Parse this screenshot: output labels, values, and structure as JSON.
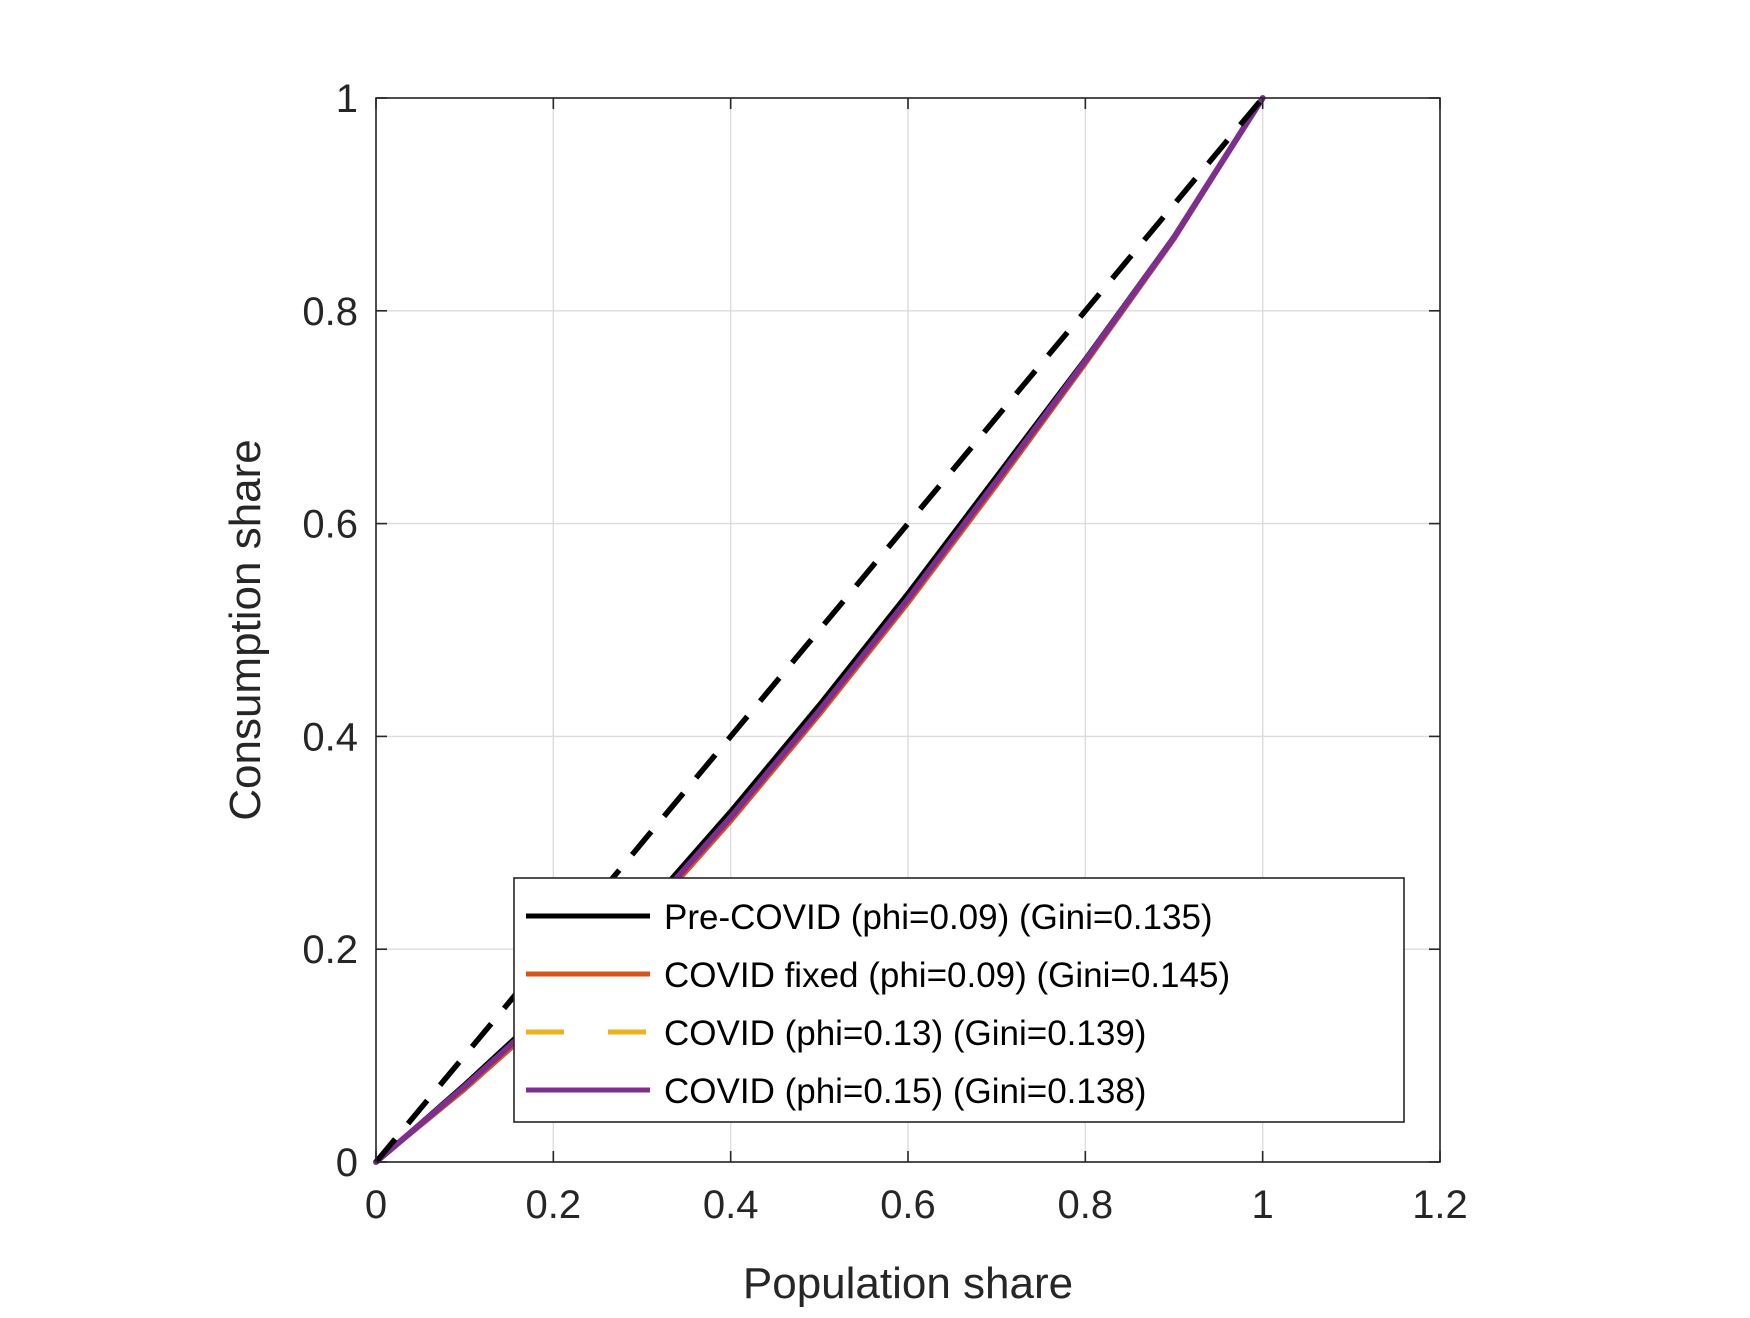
{
  "chart_data": {
    "type": "line",
    "title": "",
    "xlabel": "Population share",
    "ylabel": "Consumption share",
    "xlim": [
      0,
      1.2
    ],
    "ylim": [
      0,
      1
    ],
    "xticks": [
      "0",
      "0.2",
      "0.4",
      "0.6",
      "0.8",
      "1",
      "1.2"
    ],
    "yticks": [
      "0",
      "0.2",
      "0.4",
      "0.6",
      "0.8",
      "1"
    ],
    "grid": true,
    "legend_position": "bottom-right",
    "equality_line": {
      "x": [
        0,
        1
      ],
      "y": [
        0,
        1
      ],
      "color": "#000000",
      "style": "dashed"
    },
    "series": [
      {
        "name": "Pre-COVID (phi=0.09) (Gini=0.135)",
        "color": "#000000",
        "style": "solid",
        "x": [
          0,
          0.1,
          0.2,
          0.3,
          0.4,
          0.5,
          0.6,
          0.7,
          0.8,
          0.9,
          1.0
        ],
        "y": [
          0,
          0.073,
          0.15,
          0.235,
          0.33,
          0.43,
          0.535,
          0.645,
          0.755,
          0.87,
          1.0
        ]
      },
      {
        "name": "COVID fixed (phi=0.09) (Gini=0.145)",
        "color": "#D95319",
        "style": "solid",
        "x": [
          0,
          0.1,
          0.2,
          0.3,
          0.4,
          0.5,
          0.6,
          0.7,
          0.8,
          0.9,
          1.0
        ],
        "y": [
          0,
          0.068,
          0.142,
          0.226,
          0.32,
          0.42,
          0.525,
          0.636,
          0.75,
          0.867,
          1.0
        ]
      },
      {
        "name": "COVID (phi=0.13) (Gini=0.139)",
        "color": "#EDB120",
        "style": "dashed",
        "x": [
          0,
          0.1,
          0.2,
          0.3,
          0.4,
          0.5,
          0.6,
          0.7,
          0.8,
          0.9,
          1.0
        ],
        "y": [
          0,
          0.07,
          0.145,
          0.229,
          0.323,
          0.423,
          0.528,
          0.639,
          0.752,
          0.868,
          1.0
        ]
      },
      {
        "name": "COVID (phi=0.15) (Gini=0.138)",
        "color": "#7E2F8E",
        "style": "solid",
        "x": [
          0,
          0.1,
          0.2,
          0.3,
          0.4,
          0.5,
          0.6,
          0.7,
          0.8,
          0.9,
          1.0
        ],
        "y": [
          0,
          0.071,
          0.146,
          0.23,
          0.324,
          0.424,
          0.529,
          0.64,
          0.753,
          0.869,
          1.0
        ]
      }
    ]
  }
}
